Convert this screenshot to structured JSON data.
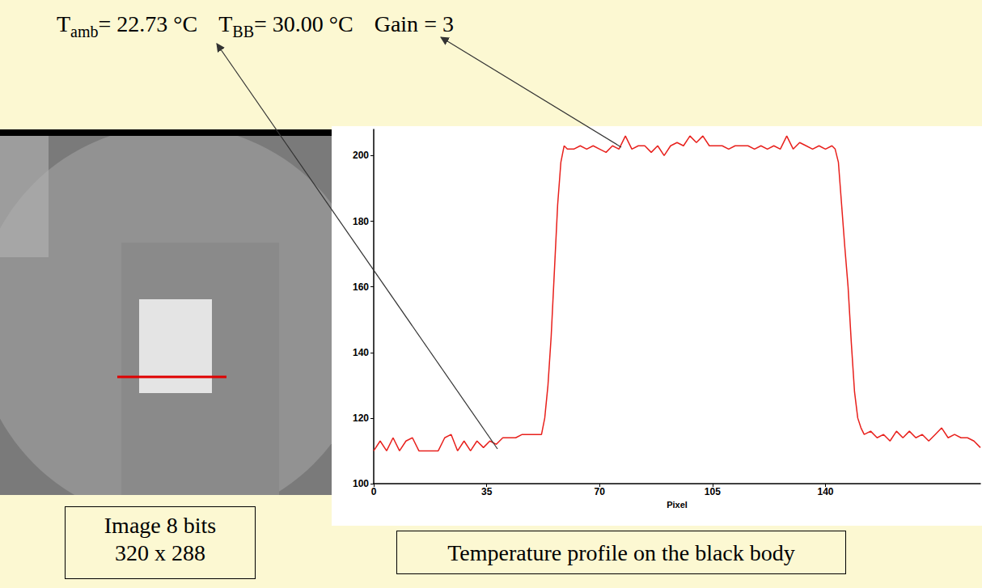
{
  "header": {
    "items": [
      {
        "symbol": "T",
        "subscript": "amb",
        "text": "= 22.73 °C"
      },
      {
        "symbol": "T",
        "subscript": "BB",
        "text": "= 30.00 °C"
      },
      {
        "symbol": "Gain",
        "subscript": null,
        "text": " = 3"
      }
    ]
  },
  "image": {
    "caption": [
      "Image 8 bits",
      "320 x 288"
    ]
  },
  "chart_caption": "Temperature profile on the black body",
  "chart_data": {
    "type": "line",
    "x_label": "Pixel",
    "color": "#e8201c",
    "grid": false,
    "xlim": [
      0,
      188
    ],
    "xticks": [
      0,
      35,
      70,
      105,
      140
    ],
    "ylim": [
      100,
      208
    ],
    "yticks": [
      100,
      120,
      140,
      160,
      180,
      200
    ],
    "x": [
      0,
      2,
      4,
      6,
      8,
      10,
      12,
      14,
      16,
      18,
      20,
      22,
      24,
      26,
      28,
      30,
      32,
      34,
      36,
      38,
      40,
      42,
      44,
      46,
      48,
      50,
      52,
      53,
      54,
      55,
      56,
      57,
      58,
      59,
      60,
      62,
      64,
      66,
      68,
      70,
      72,
      74,
      76,
      78,
      80,
      82,
      84,
      86,
      88,
      90,
      92,
      94,
      96,
      98,
      100,
      102,
      104,
      106,
      108,
      110,
      112,
      114,
      116,
      118,
      120,
      122,
      124,
      126,
      128,
      130,
      132,
      134,
      136,
      138,
      140,
      142,
      143,
      144,
      145,
      146,
      147,
      148,
      149,
      150,
      151,
      152,
      154,
      156,
      158,
      160,
      162,
      164,
      166,
      168,
      170,
      172,
      174,
      176,
      178,
      180,
      182,
      184,
      186,
      188
    ],
    "values": [
      110,
      113,
      110,
      114,
      110,
      113,
      114,
      110,
      110,
      110,
      110,
      114,
      115,
      110,
      113,
      110,
      113,
      111,
      113,
      112,
      114,
      114,
      114,
      115,
      115,
      115,
      115,
      120,
      130,
      145,
      165,
      185,
      198,
      203,
      202,
      202,
      203,
      202,
      203,
      202,
      201,
      203,
      202,
      206,
      202,
      203,
      203,
      201,
      203,
      200,
      203,
      204,
      203,
      206,
      204,
      206,
      203,
      203,
      203,
      202,
      203,
      203,
      203,
      202,
      203,
      202,
      203,
      202,
      206,
      202,
      204,
      203,
      202,
      203,
      202,
      203,
      202,
      198,
      185,
      172,
      160,
      143,
      128,
      120,
      117,
      115,
      116,
      114,
      115,
      113,
      116,
      114,
      116,
      114,
      115,
      113,
      115,
      117,
      114,
      115,
      114,
      114,
      113,
      111
    ]
  }
}
